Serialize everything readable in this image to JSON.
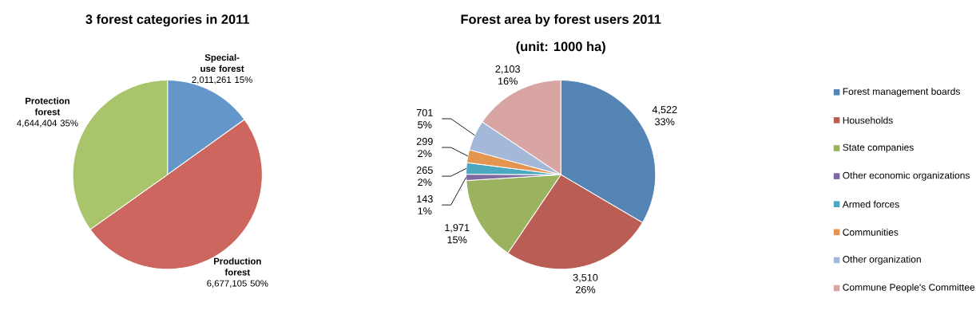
{
  "chart_data": [
    {
      "type": "pie",
      "title": "3 forest categories in 2011",
      "categories": [
        "Special-use forest",
        "Production forest",
        "Protection forest"
      ],
      "values": [
        2011261,
        6677105,
        4644404
      ],
      "value_labels": [
        "2,011,261 15%",
        "6,677,105 50%",
        "4,644,404 35%"
      ],
      "colors": [
        "#6397ca",
        "#cc665e",
        "#aac46c"
      ]
    },
    {
      "type": "pie",
      "title": "Forest area by forest users 2011",
      "subtitle": "(unit: 1000 ha)",
      "categories": [
        "Forest management boards",
        "Households",
        "State companies",
        "Other economic organizations",
        "Armed forces",
        "Communities",
        "Other organization",
        "Commune People's Committee"
      ],
      "values": [
        4522,
        3510,
        1971,
        143,
        265,
        299,
        701,
        2103
      ],
      "value_labels": [
        "4,522 33%",
        "3,510 26%",
        "1,971 15%",
        "143 1%",
        "265 2%",
        "299 2%",
        "701 5%",
        "2,103 16%"
      ],
      "colors": [
        "#5585b5",
        "#b95d55",
        "#9bb25f",
        "#7f67a0",
        "#4ba8bf",
        "#e4954f",
        "#a4b8d9",
        "#d9a5a3"
      ],
      "legend": "right"
    }
  ]
}
